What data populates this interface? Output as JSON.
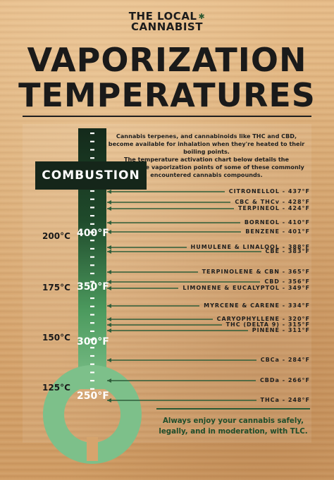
{
  "brand": {
    "line1": "THE LOCAL",
    "line2": "CANNABIST",
    "icon": "cannabis-leaf-icon"
  },
  "title": {
    "line1": "VAPORIZATION",
    "line2": "TEMPERATURES"
  },
  "intro": {
    "p1": "Cannabis terpenes, and cannabinoids like THC and CBD, become available for inhalation when they're heated to their boiling points.",
    "p2": "The temperature activation chart below details the approximate vaporization points of some of these commonly encountered cannabis compounds."
  },
  "combustion_label": "COMBUSTION",
  "scale": [
    {
      "c": "200",
      "f": "400"
    },
    {
      "c": "175",
      "f": "350"
    },
    {
      "c": "150",
      "f": "300"
    },
    {
      "c": "125",
      "f": "250"
    }
  ],
  "degree_unit_c": "°C",
  "degree_unit_f": "°F",
  "compounds": [
    {
      "label": "CITRONELLOL - 437°F",
      "temp": 437
    },
    {
      "label": "CBC & THCv - 428°F",
      "temp": 428
    },
    {
      "label": "TERPINEOL - 424°F",
      "temp": 424
    },
    {
      "label": "BORNEOL - 410°F",
      "temp": 410
    },
    {
      "label": "BENZENE - 401°F",
      "temp": 401
    },
    {
      "label": "HUMULENE & LINALOOL - 388°F",
      "temp": 388
    },
    {
      "label": "CBE - 383°F",
      "temp": 383
    },
    {
      "label": "TERPINOLENE & CBN - 365°F",
      "temp": 365
    },
    {
      "label": "CBD - 356°F",
      "temp": 356
    },
    {
      "label": "LIMONENE & EUCALYPTOL - 349°F",
      "temp": 349
    },
    {
      "label": "MYRCENE & CARENE - 334°F",
      "temp": 334
    },
    {
      "label": "CARYOPHYLLENE - 320°F",
      "temp": 320
    },
    {
      "label": "THC (DELTA 9) - 315°F",
      "temp": 315
    },
    {
      "label": "PINENE - 311°F",
      "temp": 311
    },
    {
      "label": "CBCa - 284°F",
      "temp": 284
    },
    {
      "label": "CBDa - 266°F",
      "temp": 266
    },
    {
      "label": "THCa - 248°F",
      "temp": 248
    }
  ],
  "outro": "Always enjoy your cannabis safely, legally, and in moderation, with TLC.",
  "colors": {
    "dark_green": "#15261a",
    "mid_green": "#3f8a52",
    "light_green": "#7dc08a",
    "line_green": "#2f5e3a"
  }
}
